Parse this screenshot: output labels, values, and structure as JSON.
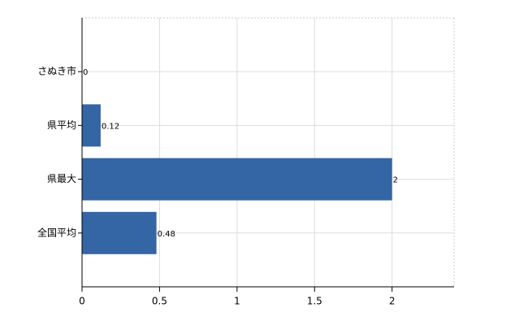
{
  "chart_data": {
    "type": "bar",
    "orientation": "horizontal",
    "categories": [
      "さぬき市",
      "県平均",
      "県最大",
      "全国平均"
    ],
    "values": [
      0,
      0.12,
      2,
      0.48
    ],
    "color": "#3465a4",
    "xlim": [
      0,
      2.4
    ],
    "xticks": [
      0,
      0.5,
      1,
      1.5,
      2
    ],
    "grid": true
  }
}
